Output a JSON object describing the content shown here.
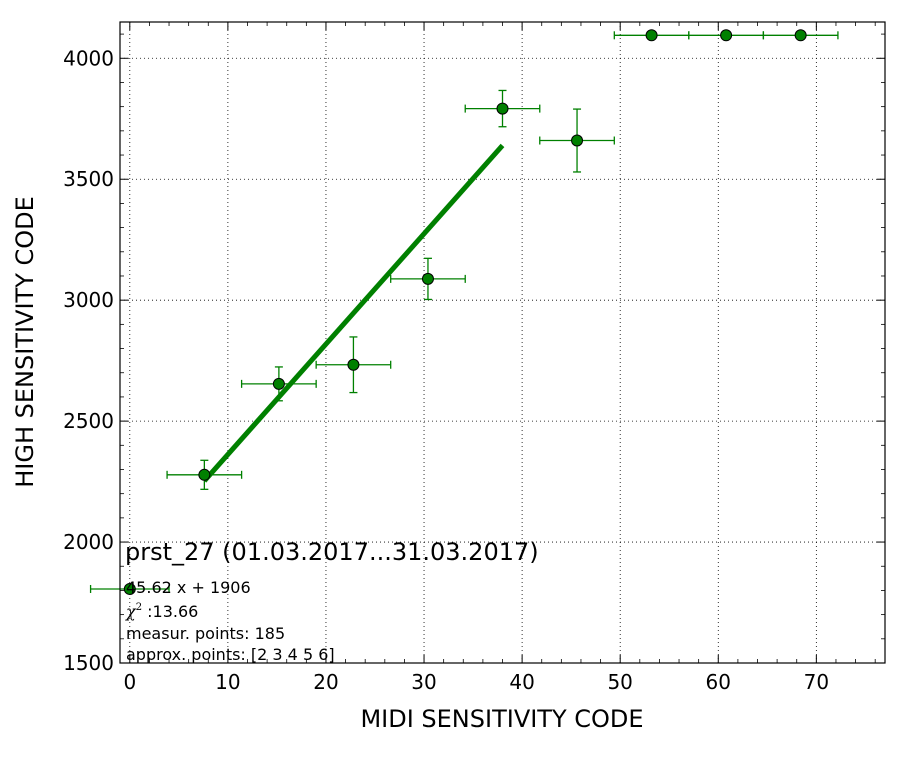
{
  "chart_data": {
    "type": "scatter",
    "xlabel": "MIDI SENSITIVITY CODE",
    "ylabel": "HIGH SENSITIVITY CODE",
    "xlim": [
      -1,
      77
    ],
    "ylim": [
      1500,
      4150
    ],
    "x_ticks": [
      0,
      10,
      20,
      30,
      40,
      50,
      60,
      70
    ],
    "y_ticks": [
      1500,
      2000,
      2500,
      3000,
      3500,
      4000
    ],
    "grid": true,
    "color": "#008000",
    "points": [
      {
        "x": 0.0,
        "y": 1806,
        "xerr": 4.0,
        "yerr": 0
      },
      {
        "x": 7.6,
        "y": 2278,
        "xerr": 3.8,
        "yerr": 60
      },
      {
        "x": 15.2,
        "y": 2654,
        "xerr": 3.8,
        "yerr": 70
      },
      {
        "x": 22.8,
        "y": 2733,
        "xerr": 3.8,
        "yerr": 115
      },
      {
        "x": 30.4,
        "y": 3088,
        "xerr": 3.8,
        "yerr": 85
      },
      {
        "x": 38.0,
        "y": 3792,
        "xerr": 3.8,
        "yerr": 75
      },
      {
        "x": 45.6,
        "y": 3660,
        "xerr": 3.8,
        "yerr": 130
      },
      {
        "x": 53.2,
        "y": 4095,
        "xerr": 3.8,
        "yerr": 0
      },
      {
        "x": 60.8,
        "y": 4095,
        "xerr": 3.8,
        "yerr": 0
      },
      {
        "x": 68.4,
        "y": 4095,
        "xerr": 3.8,
        "yerr": 0
      }
    ],
    "fit_line": {
      "slope": 45.62,
      "intercept": 1906,
      "x_start": 7.6,
      "x_end": 38.0
    },
    "annotations": {
      "title": "prst_27 (01.03.2017...31.03.2017)",
      "legend_label": "45.62 x + 1906",
      "chi_symbol": "χ",
      "chi_exponent": "2",
      "chi_value": " :13.66",
      "measur_points": "measur. points: 185",
      "approx_points": "approx. points: [2 3 4 5 6]"
    }
  }
}
